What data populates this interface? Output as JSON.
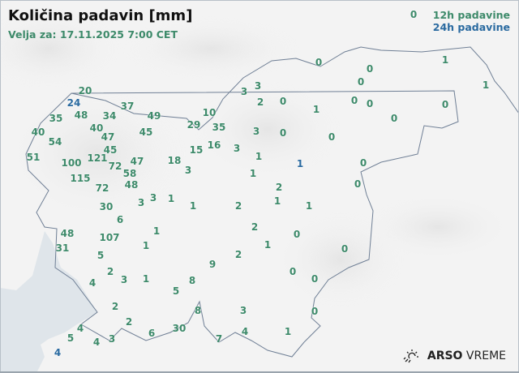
{
  "header": {
    "title": "Količina padavin [mm]",
    "valid_for": "Velja za: 17.11.2025 7:00 CET"
  },
  "legend": {
    "label_12h": "12h padavine",
    "label_24h": "24h padavine",
    "color_12h": "#3d8a6a",
    "color_24h": "#2a6aa0"
  },
  "logo": {
    "brand": "ARSO",
    "product": "VREME",
    "icon": "sun-rain-icon"
  },
  "stations": [
    {
      "value": "0",
      "type": "12h"
    },
    {
      "value": "24",
      "type": "24h"
    },
    {
      "value": "1",
      "type": "24h"
    },
    {
      "value": "4",
      "type": "24h"
    },
    {
      "value": "20",
      "type": "12h"
    },
    {
      "value": "37",
      "type": "12h"
    },
    {
      "value": "49",
      "type": "12h"
    },
    {
      "value": "10",
      "type": "12h"
    },
    {
      "value": "29",
      "type": "12h"
    },
    {
      "value": "35",
      "type": "12h"
    },
    {
      "value": "35",
      "type": "12h"
    },
    {
      "value": "48",
      "type": "12h"
    },
    {
      "value": "34",
      "type": "12h"
    },
    {
      "value": "40",
      "type": "12h"
    },
    {
      "value": "47",
      "type": "12h"
    },
    {
      "value": "45",
      "type": "12h"
    },
    {
      "value": "40",
      "type": "12h"
    },
    {
      "value": "54",
      "type": "12h"
    },
    {
      "value": "45",
      "type": "12h"
    },
    {
      "value": "15",
      "type": "12h"
    },
    {
      "value": "16",
      "type": "12h"
    },
    {
      "value": "51",
      "type": "12h"
    },
    {
      "value": "100",
      "type": "12h"
    },
    {
      "value": "121",
      "type": "12h"
    },
    {
      "value": "72",
      "type": "12h"
    },
    {
      "value": "47",
      "type": "12h"
    },
    {
      "value": "58",
      "type": "12h"
    },
    {
      "value": "48",
      "type": "12h"
    },
    {
      "value": "18",
      "type": "12h"
    },
    {
      "value": "3",
      "type": "12h"
    },
    {
      "value": "115",
      "type": "12h"
    },
    {
      "value": "72",
      "type": "12h"
    },
    {
      "value": "3",
      "type": "12h"
    },
    {
      "value": "3",
      "type": "12h"
    },
    {
      "value": "1",
      "type": "12h"
    },
    {
      "value": "1",
      "type": "12h"
    },
    {
      "value": "30",
      "type": "12h"
    },
    {
      "value": "6",
      "type": "12h"
    },
    {
      "value": "1",
      "type": "12h"
    },
    {
      "value": "48",
      "type": "12h"
    },
    {
      "value": "107",
      "type": "12h"
    },
    {
      "value": "31",
      "type": "12h"
    },
    {
      "value": "1",
      "type": "12h"
    },
    {
      "value": "5",
      "type": "12h"
    },
    {
      "value": "2",
      "type": "12h"
    },
    {
      "value": "3",
      "type": "12h"
    },
    {
      "value": "1",
      "type": "12h"
    },
    {
      "value": "4",
      "type": "12h"
    },
    {
      "value": "9",
      "type": "12h"
    },
    {
      "value": "8",
      "type": "12h"
    },
    {
      "value": "5",
      "type": "12h"
    },
    {
      "value": "2",
      "type": "12h"
    },
    {
      "value": "2",
      "type": "12h"
    },
    {
      "value": "6",
      "type": "12h"
    },
    {
      "value": "30",
      "type": "12h"
    },
    {
      "value": "8",
      "type": "12h"
    },
    {
      "value": "7",
      "type": "12h"
    },
    {
      "value": "4",
      "type": "12h"
    },
    {
      "value": "5",
      "type": "12h"
    },
    {
      "value": "4",
      "type": "12h"
    },
    {
      "value": "3",
      "type": "12h"
    },
    {
      "value": "0",
      "type": "12h"
    },
    {
      "value": "0",
      "type": "12h"
    },
    {
      "value": "1",
      "type": "12h"
    },
    {
      "value": "0",
      "type": "12h"
    },
    {
      "value": "1",
      "type": "12h"
    },
    {
      "value": "3",
      "type": "12h"
    },
    {
      "value": "3",
      "type": "12h"
    },
    {
      "value": "2",
      "type": "12h"
    },
    {
      "value": "0",
      "type": "12h"
    },
    {
      "value": "1",
      "type": "12h"
    },
    {
      "value": "0",
      "type": "12h"
    },
    {
      "value": "0",
      "type": "12h"
    },
    {
      "value": "0",
      "type": "12h"
    },
    {
      "value": "0",
      "type": "12h"
    },
    {
      "value": "3",
      "type": "12h"
    },
    {
      "value": "0",
      "type": "12h"
    },
    {
      "value": "0",
      "type": "12h"
    },
    {
      "value": "3",
      "type": "12h"
    },
    {
      "value": "1",
      "type": "12h"
    },
    {
      "value": "1",
      "type": "12h"
    },
    {
      "value": "0",
      "type": "12h"
    },
    {
      "value": "0",
      "type": "12h"
    },
    {
      "value": "2",
      "type": "12h"
    },
    {
      "value": "1",
      "type": "12h"
    },
    {
      "value": "1",
      "type": "12h"
    },
    {
      "value": "2",
      "type": "12h"
    },
    {
      "value": "2",
      "type": "12h"
    },
    {
      "value": "0",
      "type": "12h"
    },
    {
      "value": "1",
      "type": "12h"
    },
    {
      "value": "2",
      "type": "12h"
    },
    {
      "value": "0",
      "type": "12h"
    },
    {
      "value": "0",
      "type": "12h"
    },
    {
      "value": "0",
      "type": "12h"
    },
    {
      "value": "3",
      "type": "12h"
    },
    {
      "value": "0",
      "type": "12h"
    },
    {
      "value": "4",
      "type": "12h"
    },
    {
      "value": "1",
      "type": "12h"
    }
  ]
}
